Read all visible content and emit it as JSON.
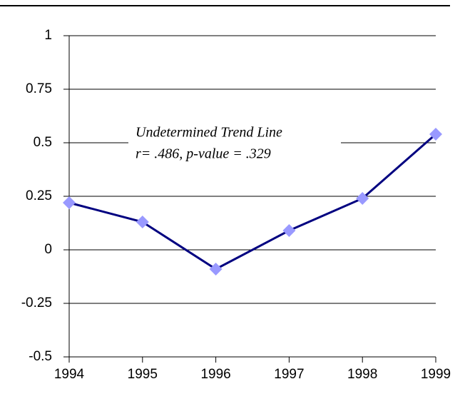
{
  "chart_data": {
    "type": "line",
    "x": [
      1994,
      1995,
      1996,
      1997,
      1998,
      1999
    ],
    "series": [
      {
        "color": "#000080",
        "marker_color": "#9999ff",
        "values": [
          0.22,
          0.13,
          -0.09,
          0.09,
          0.24,
          0.54
        ]
      }
    ],
    "xlim": [
      1994,
      1999
    ],
    "xticks": [
      1994,
      1995,
      1996,
      1997,
      1998,
      1999
    ],
    "ylim": [
      -0.5,
      1
    ],
    "yticks": [
      -0.5,
      -0.25,
      0,
      0.25,
      0.5,
      0.75,
      1
    ],
    "grid": true,
    "annotations": [
      "Undetermined Trend Line",
      "r= .486, p-value = .329"
    ]
  }
}
